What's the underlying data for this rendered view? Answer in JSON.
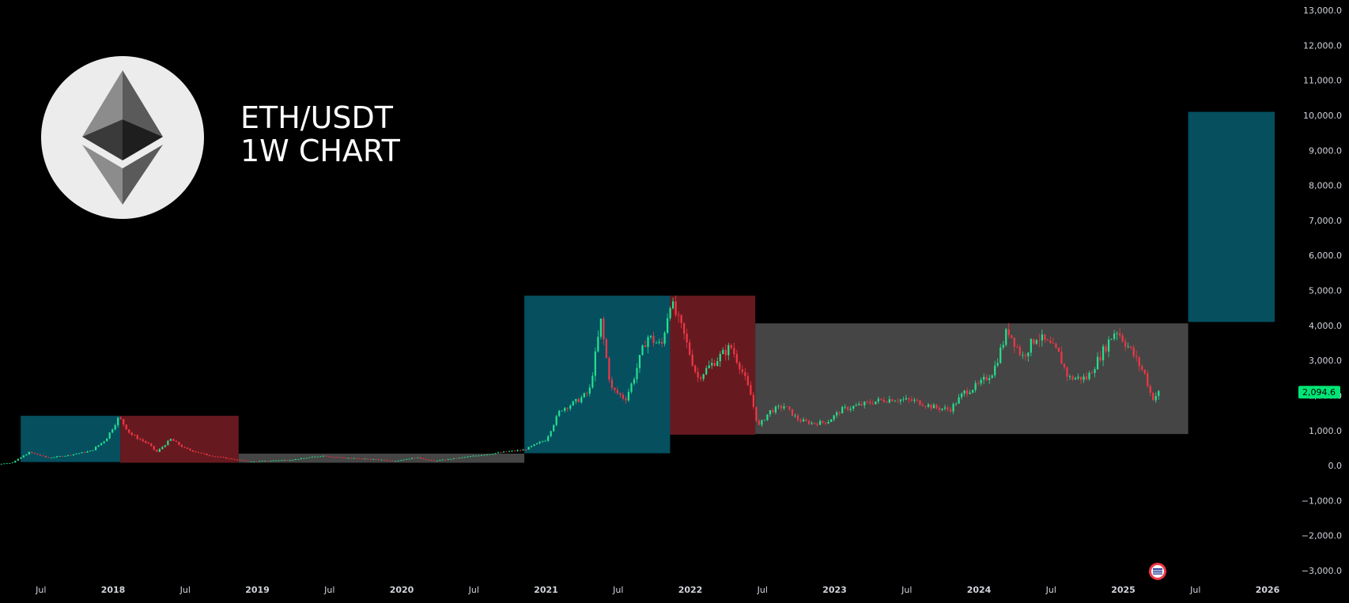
{
  "chart_title": {
    "line1": "ETH/USDT",
    "line2": "1W CHART"
  },
  "logo": {
    "icon": "ethereum-logo-icon",
    "background": "#ececec"
  },
  "colors": {
    "background": "#000000",
    "bull_candle": "#26e08f",
    "bear_candle": "#f23645",
    "zone_bull": "#054f5f",
    "zone_bear": "#661a20",
    "zone_range": "#454545",
    "axis_text": "#d1d4dc",
    "price_tag": "#00e676"
  },
  "chart_data": {
    "type": "candlestick",
    "symbol": "ETH/USDT",
    "timeframe": "1W",
    "x_ticks": [
      "Jul",
      "2018",
      "Jul",
      "2019",
      "Jul",
      "2020",
      "Jul",
      "2021",
      "Jul",
      "2022",
      "Jul",
      "2023",
      "Jul",
      "2024",
      "Jul",
      "2025",
      "Jul",
      "2026"
    ],
    "x_tick_dates": [
      2017.5,
      2018.0,
      2018.5,
      2019.0,
      2019.5,
      2020.0,
      2020.5,
      2021.0,
      2021.5,
      2022.0,
      2022.5,
      2023.0,
      2023.5,
      2024.0,
      2024.5,
      2025.0,
      2025.5,
      2026.0
    ],
    "x_range": [
      2017.13,
      2026.12
    ],
    "y_ticks": [
      "13,000.0",
      "12,000.0",
      "11,000.0",
      "10,000.0",
      "9,000.0",
      "8,000.0",
      "7,000.0",
      "6,000.0",
      "5,000.0",
      "4,000.0",
      "3,000.0",
      "2,000.0",
      "1,000.0",
      "0.0",
      "−1,000.0",
      "−2,000.0",
      "−3,000.0"
    ],
    "y_tick_values": [
      13000,
      12000,
      11000,
      10000,
      9000,
      8000,
      7000,
      6000,
      5000,
      4000,
      3000,
      2000,
      1000,
      0,
      -1000,
      -2000,
      -3000
    ],
    "y_range": [
      -3300,
      13300
    ],
    "last_price": "2,094.6",
    "last_price_value": 2094.6,
    "price_path": [
      [
        2017.13,
        12
      ],
      [
        2017.3,
        80
      ],
      [
        2017.42,
        380
      ],
      [
        2017.55,
        220
      ],
      [
        2017.7,
        300
      ],
      [
        2017.85,
        420
      ],
      [
        2017.95,
        750
      ],
      [
        2018.04,
        1380
      ],
      [
        2018.12,
        900
      ],
      [
        2018.25,
        600
      ],
      [
        2018.3,
        380
      ],
      [
        2018.4,
        750
      ],
      [
        2018.5,
        480
      ],
      [
        2018.65,
        300
      ],
      [
        2018.8,
        200
      ],
      [
        2018.95,
        110
      ],
      [
        2019.1,
        140
      ],
      [
        2019.25,
        170
      ],
      [
        2019.45,
        280
      ],
      [
        2019.6,
        220
      ],
      [
        2019.8,
        180
      ],
      [
        2019.95,
        130
      ],
      [
        2020.1,
        230
      ],
      [
        2020.22,
        130
      ],
      [
        2020.4,
        220
      ],
      [
        2020.55,
        300
      ],
      [
        2020.7,
        380
      ],
      [
        2020.85,
        450
      ],
      [
        2021.0,
        740
      ],
      [
        2021.1,
        1600
      ],
      [
        2021.2,
        1800
      ],
      [
        2021.3,
        2100
      ],
      [
        2021.38,
        4100
      ],
      [
        2021.45,
        2200
      ],
      [
        2021.55,
        1900
      ],
      [
        2021.6,
        2400
      ],
      [
        2021.7,
        3700
      ],
      [
        2021.8,
        3400
      ],
      [
        2021.86,
        4700
      ],
      [
        2021.95,
        3800
      ],
      [
        2022.05,
        2500
      ],
      [
        2022.15,
        2900
      ],
      [
        2022.28,
        3400
      ],
      [
        2022.35,
        2800
      ],
      [
        2022.42,
        2000
      ],
      [
        2022.47,
        1100
      ],
      [
        2022.55,
        1550
      ],
      [
        2022.65,
        1700
      ],
      [
        2022.75,
        1300
      ],
      [
        2022.85,
        1200
      ],
      [
        2022.95,
        1250
      ],
      [
        2023.05,
        1600
      ],
      [
        2023.15,
        1700
      ],
      [
        2023.3,
        1850
      ],
      [
        2023.4,
        1900
      ],
      [
        2023.55,
        1850
      ],
      [
        2023.7,
        1650
      ],
      [
        2023.8,
        1600
      ],
      [
        2023.9,
        2100
      ],
      [
        2024.0,
        2300
      ],
      [
        2024.1,
        2700
      ],
      [
        2024.2,
        3900
      ],
      [
        2024.3,
        3100
      ],
      [
        2024.4,
        3700
      ],
      [
        2024.5,
        3400
      ],
      [
        2024.55,
        3200
      ],
      [
        2024.62,
        2500
      ],
      [
        2024.75,
        2500
      ],
      [
        2024.85,
        3200
      ],
      [
        2024.95,
        3900
      ],
      [
        2025.05,
        3300
      ],
      [
        2025.15,
        2600
      ],
      [
        2025.2,
        1900
      ],
      [
        2025.25,
        2094.6
      ]
    ],
    "zones": [
      {
        "start": 2017.36,
        "end": 2018.05,
        "low": 100,
        "high": 1420,
        "kind": "bull"
      },
      {
        "start": 2018.05,
        "end": 2018.87,
        "low": 80,
        "high": 1420,
        "kind": "bear"
      },
      {
        "start": 2018.87,
        "end": 2020.85,
        "low": 80,
        "high": 340,
        "kind": "range"
      },
      {
        "start": 2020.85,
        "end": 2021.86,
        "low": 350,
        "high": 4850,
        "kind": "bull"
      },
      {
        "start": 2021.86,
        "end": 2022.45,
        "low": 880,
        "high": 4850,
        "kind": "bear"
      },
      {
        "start": 2022.45,
        "end": 2025.45,
        "low": 900,
        "high": 4060,
        "kind": "range"
      },
      {
        "start": 2025.45,
        "end": 2026.2,
        "low": 4100,
        "high": 10100,
        "kind": "bull"
      }
    ]
  },
  "flag_marker": {
    "icon": "us-flag-event-icon"
  }
}
